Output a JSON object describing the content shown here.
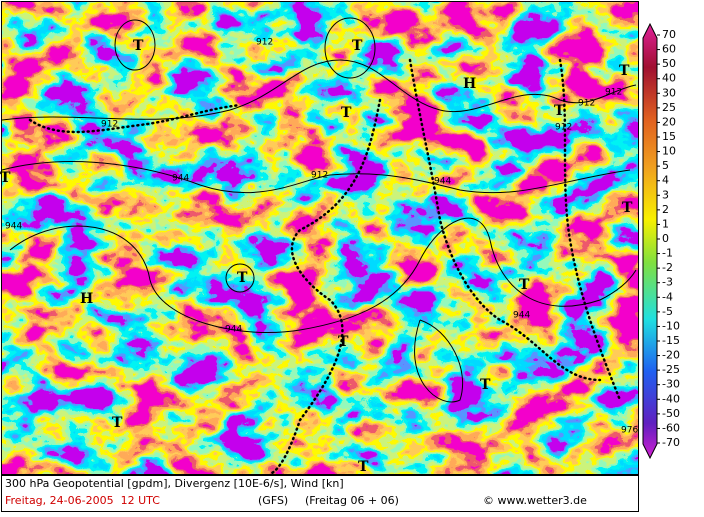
{
  "map": {
    "labels": [
      "T",
      "T",
      "T",
      "H",
      "T",
      "T",
      "T",
      "T",
      "H",
      "T",
      "T",
      "T",
      "T",
      "T",
      "T",
      "912",
      "912",
      "912",
      "912",
      "912",
      "944",
      "944",
      "944",
      "944",
      "944",
      "976",
      "912"
    ]
  },
  "colorbar": {
    "labels": [
      70,
      60,
      50,
      40,
      30,
      25,
      20,
      15,
      10,
      5,
      4,
      3,
      2,
      1,
      0,
      -1,
      -2,
      -3,
      -4,
      -5,
      -10,
      -15,
      -20,
      -25,
      -30,
      -40,
      -50,
      -60,
      -70
    ]
  },
  "footer": {
    "description": "300 hPa Geopotential [gpdm], Divergenz [10E-6/s], Wind [kn]",
    "date": "Freitag, 24-06-2005  12 UTC",
    "model": "(GFS)",
    "run": "(Freitag 06 + 06)",
    "source": "© www.wetter3.de"
  }
}
